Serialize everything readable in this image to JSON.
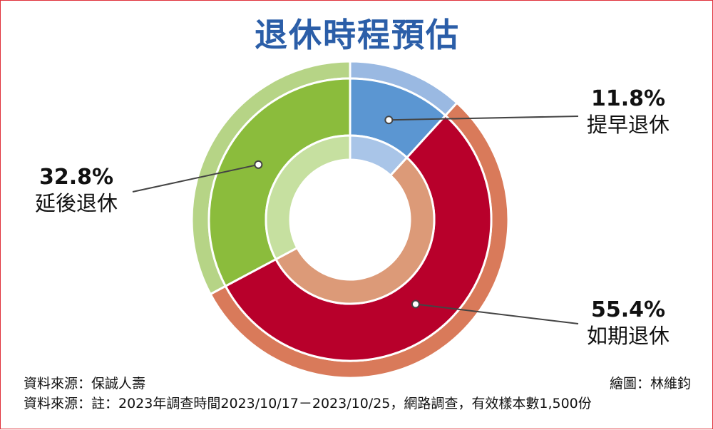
{
  "chart_data": {
    "type": "pie",
    "title": "退休時程預估",
    "values": [
      11.8,
      55.4,
      32.8
    ],
    "labels": [
      "提早退休",
      "如期退休",
      "延後退休"
    ],
    "value_labels": [
      "11.8%",
      "55.4%",
      "32.8%"
    ],
    "colors": {
      "提早退休": {
        "outer_rim": "#9ab9e2",
        "main": "#5b96d2",
        "inner": "#a9c5e8"
      },
      "如期退休": {
        "outer_rim": "#d97a5a",
        "main": "#b8002b",
        "inner": "#dc9a78"
      },
      "延後退休": {
        "outer_rim": "#b6d486",
        "main": "#8bbc3c",
        "inner": "#c6e0a0"
      }
    }
  },
  "footer": {
    "source1": "資料來源：保誠人壽",
    "credit": "繪圖：林維鈞",
    "source2": "資料來源：註：2023年調查時間2023/10/17－2023/10/25，網路調查，有效樣本數1,500份"
  }
}
